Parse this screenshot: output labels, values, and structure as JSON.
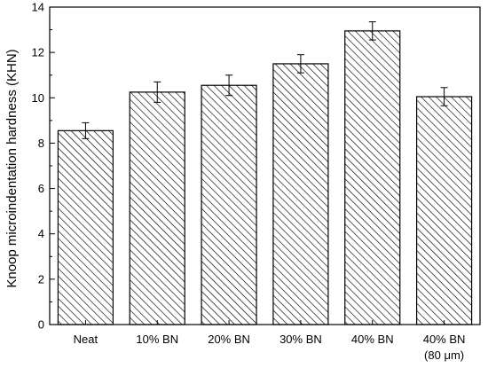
{
  "chart_data": {
    "type": "bar",
    "xlabel": "",
    "ylabel": "Knoop microindentation hardness (KHN)",
    "ylim": [
      0,
      14
    ],
    "yticks": [
      0,
      2,
      4,
      6,
      8,
      10,
      12,
      14
    ],
    "categories": [
      [
        "Neat"
      ],
      [
        "10% BN"
      ],
      [
        "20% BN"
      ],
      [
        "30% BN"
      ],
      [
        "40% BN"
      ],
      [
        "40% BN",
        "(80 μm)"
      ]
    ],
    "values": [
      8.55,
      10.25,
      10.55,
      11.5,
      12.95,
      10.05
    ],
    "errors": [
      0.35,
      0.45,
      0.45,
      0.4,
      0.4,
      0.4
    ],
    "bar_fill": "diagonal-hatch",
    "colors": {
      "bar_stroke": "#000000",
      "hatch": "#000000",
      "background": "#ffffff"
    },
    "grid": false,
    "legend": "none"
  }
}
